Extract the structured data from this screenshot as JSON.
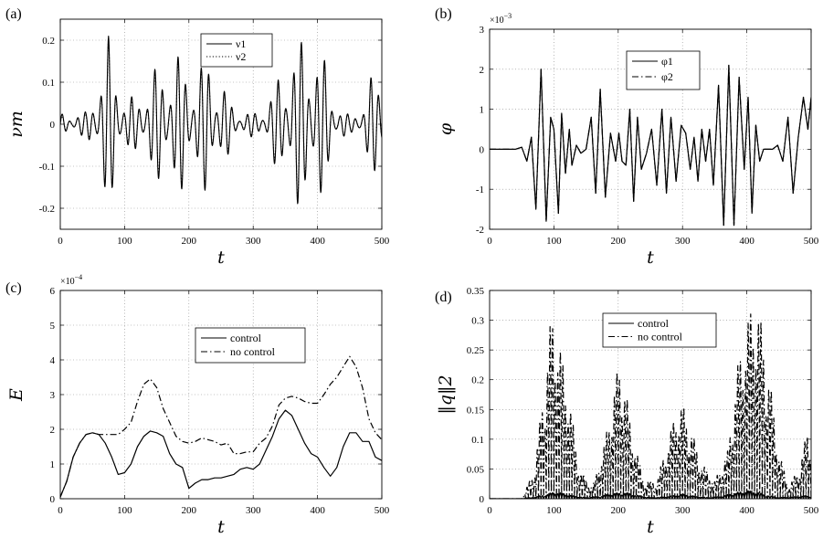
{
  "chart_data": [
    {
      "type": "line",
      "panel_label": "(a)",
      "xlabel": "t",
      "ylabel": "νm",
      "xlim": [
        0,
        500
      ],
      "ylim": [
        -0.25,
        0.25
      ],
      "xticks": [
        "0",
        "100",
        "200",
        "300",
        "400",
        "500"
      ],
      "yticks": [
        "-0.2",
        "-0.1",
        "0",
        "0.1",
        "0.2"
      ],
      "grid": true,
      "legend": "top-center",
      "series": [
        {
          "name": "ν1",
          "style": "solid",
          "form": "oscillation",
          "carrier_period": 12,
          "envelope_t": [
            0,
            40,
            60,
            75,
            85,
            100,
            120,
            150,
            170,
            185,
            200,
            215,
            230,
            250,
            270,
            290,
            305,
            320,
            340,
            360,
            380,
            395,
            410,
            430,
            450,
            470,
            485,
            500
          ],
          "envelope_v": [
            0.025,
            0.03,
            0.12,
            0.21,
            0.18,
            0.06,
            0.07,
            0.14,
            0.16,
            0.17,
            0.14,
            0.14,
            0.17,
            0.11,
            0.04,
            0.03,
            0.03,
            0.05,
            0.12,
            0.19,
            0.21,
            0.22,
            0.16,
            0.05,
            0.02,
            0.05,
            0.12,
            0.16
          ]
        },
        {
          "name": "ν2",
          "style": "dotted",
          "form": "oscillation",
          "carrier_period": 12,
          "envelope_t": [
            0,
            40,
            60,
            75,
            85,
            100,
            120,
            150,
            170,
            185,
            200,
            215,
            230,
            250,
            270,
            290,
            305,
            320,
            340,
            360,
            380,
            395,
            410,
            430,
            450,
            470,
            485,
            500
          ],
          "envelope_v": [
            0.02,
            0.025,
            0.11,
            0.2,
            0.17,
            0.05,
            0.06,
            0.13,
            0.15,
            0.16,
            0.13,
            0.13,
            0.16,
            0.1,
            0.035,
            0.025,
            0.025,
            0.045,
            0.11,
            0.18,
            0.2,
            0.21,
            0.15,
            0.045,
            0.018,
            0.045,
            0.11,
            0.15
          ]
        }
      ]
    },
    {
      "type": "line",
      "panel_label": "(b)",
      "xlabel": "t",
      "ylabel": "φ",
      "xlim": [
        0,
        500
      ],
      "ylim": [
        -2,
        3
      ],
      "scale_exponent": "×10",
      "scale_power": "−3",
      "xticks": [
        "0",
        "100",
        "200",
        "300",
        "400",
        "500"
      ],
      "yticks": [
        "-2",
        "-1",
        "0",
        "1",
        "2",
        "3"
      ],
      "grid": true,
      "legend": "top-center",
      "series": [
        {
          "name": "φ1",
          "style": "solid",
          "x": [
            0,
            40,
            50,
            58,
            65,
            72,
            80,
            88,
            95,
            100,
            107,
            112,
            118,
            124,
            128,
            135,
            142,
            150,
            158,
            165,
            172,
            180,
            188,
            196,
            201,
            206,
            212,
            218,
            224,
            230,
            236,
            244,
            252,
            260,
            268,
            275,
            282,
            290,
            298,
            305,
            312,
            318,
            324,
            330,
            336,
            342,
            348,
            356,
            364,
            372,
            380,
            388,
            396,
            402,
            408,
            414,
            420,
            426,
            432,
            440,
            448,
            456,
            464,
            472,
            480,
            488,
            495,
            500
          ],
          "y": [
            0,
            0,
            0.05,
            -0.3,
            0.3,
            -1.5,
            2.0,
            -1.8,
            0.8,
            0.5,
            -1.6,
            0.9,
            -0.6,
            0.5,
            -0.4,
            0.1,
            -0.1,
            0.0,
            0.8,
            -1.1,
            1.5,
            -1.2,
            0.4,
            -0.3,
            0.4,
            -0.3,
            -0.4,
            1.0,
            -1.3,
            0.8,
            -0.5,
            -0.1,
            0.5,
            -0.9,
            1.0,
            -1.1,
            0.8,
            -0.8,
            0.6,
            0.4,
            -0.5,
            0.3,
            -0.8,
            0.5,
            -0.3,
            0.5,
            -0.9,
            1.6,
            -1.9,
            2.1,
            -1.9,
            1.8,
            -0.5,
            1.3,
            -1.6,
            0.6,
            -0.3,
            0.0,
            0.0,
            0.0,
            0.1,
            -0.3,
            0.8,
            -1.1,
            0.3,
            1.3,
            0.5,
            1.3
          ]
        },
        {
          "name": "φ2",
          "style": "dashdot",
          "x": [
            0,
            40,
            50,
            58,
            65,
            72,
            80,
            88,
            95,
            100,
            107,
            112,
            118,
            124,
            128,
            135,
            142,
            150,
            158,
            165,
            172,
            180,
            188,
            196,
            201,
            206,
            212,
            218,
            224,
            230,
            236,
            244,
            252,
            260,
            268,
            275,
            282,
            290,
            298,
            305,
            312,
            318,
            324,
            330,
            336,
            342,
            348,
            356,
            364,
            372,
            380,
            388,
            396,
            402,
            408,
            414,
            420,
            426,
            432,
            440,
            448,
            456,
            464,
            472,
            480,
            488,
            495,
            500
          ],
          "y": [
            0,
            0,
            0.05,
            -0.3,
            0.3,
            -1.5,
            2.0,
            -1.8,
            0.8,
            0.5,
            -1.6,
            0.9,
            -0.6,
            0.5,
            -0.4,
            0.1,
            -0.1,
            0.0,
            0.8,
            -1.1,
            1.5,
            -1.2,
            0.4,
            -0.3,
            0.4,
            -0.3,
            -0.4,
            1.0,
            -1.3,
            0.8,
            -0.5,
            -0.1,
            0.5,
            -0.9,
            1.0,
            -1.1,
            0.8,
            -0.8,
            0.6,
            0.4,
            -0.5,
            0.3,
            -0.8,
            0.5,
            -0.3,
            0.5,
            -0.9,
            1.6,
            -1.9,
            2.1,
            -1.9,
            1.8,
            -0.5,
            1.3,
            -1.6,
            0.6,
            -0.3,
            0.0,
            0.0,
            0.0,
            0.1,
            -0.3,
            0.8,
            -1.1,
            0.3,
            1.3,
            0.5,
            1.3
          ]
        }
      ]
    },
    {
      "type": "line",
      "panel_label": "(c)",
      "xlabel": "t",
      "ylabel": "E",
      "xlim": [
        0,
        500
      ],
      "ylim": [
        0,
        6
      ],
      "scale_exponent": "×10",
      "scale_power": "−4",
      "xticks": [
        "0",
        "100",
        "200",
        "300",
        "400",
        "500"
      ],
      "yticks": [
        "0",
        "1",
        "2",
        "3",
        "4",
        "5",
        "6"
      ],
      "grid": true,
      "legend": "upper-center",
      "series": [
        {
          "name": "control",
          "style": "solid",
          "x": [
            0,
            10,
            20,
            30,
            40,
            50,
            60,
            70,
            80,
            90,
            100,
            110,
            120,
            130,
            140,
            150,
            160,
            170,
            180,
            190,
            200,
            210,
            220,
            230,
            240,
            250,
            260,
            270,
            280,
            290,
            300,
            310,
            320,
            330,
            340,
            350,
            360,
            370,
            380,
            390,
            400,
            410,
            420,
            430,
            440,
            450,
            460,
            470,
            480,
            490,
            500
          ],
          "y": [
            0.05,
            0.5,
            1.2,
            1.6,
            1.85,
            1.9,
            1.85,
            1.6,
            1.2,
            0.7,
            0.75,
            1.0,
            1.5,
            1.8,
            1.95,
            1.9,
            1.8,
            1.3,
            1.0,
            0.9,
            0.3,
            0.45,
            0.55,
            0.55,
            0.6,
            0.6,
            0.65,
            0.7,
            0.85,
            0.9,
            0.85,
            1.0,
            1.4,
            1.8,
            2.3,
            2.55,
            2.4,
            2.0,
            1.6,
            1.3,
            1.2,
            0.9,
            0.65,
            0.9,
            1.5,
            1.9,
            1.9,
            1.65,
            1.65,
            1.2,
            1.1
          ]
        },
        {
          "name": "no control",
          "style": "dashdot",
          "x": [
            0,
            10,
            20,
            30,
            40,
            50,
            60,
            70,
            80,
            90,
            100,
            110,
            120,
            130,
            140,
            150,
            160,
            170,
            180,
            190,
            200,
            210,
            220,
            230,
            240,
            250,
            260,
            270,
            280,
            290,
            300,
            310,
            320,
            330,
            340,
            350,
            360,
            370,
            380,
            390,
            400,
            410,
            420,
            430,
            440,
            450,
            460,
            470,
            480,
            490,
            500
          ],
          "y": [
            0.05,
            0.5,
            1.2,
            1.6,
            1.85,
            1.9,
            1.85,
            1.85,
            1.85,
            1.85,
            2.0,
            2.2,
            2.8,
            3.3,
            3.45,
            3.2,
            2.6,
            2.2,
            1.8,
            1.65,
            1.6,
            1.65,
            1.75,
            1.7,
            1.65,
            1.55,
            1.6,
            1.3,
            1.3,
            1.35,
            1.35,
            1.6,
            1.75,
            2.1,
            2.7,
            2.9,
            2.95,
            2.9,
            2.8,
            2.75,
            2.75,
            3.0,
            3.3,
            3.5,
            3.8,
            4.1,
            3.8,
            3.2,
            2.3,
            1.9,
            1.7
          ]
        }
      ]
    },
    {
      "type": "line",
      "panel_label": "(d)",
      "xlabel": "t",
      "ylabel": "‖q‖2",
      "xlim": [
        0,
        500
      ],
      "ylim": [
        0,
        0.35
      ],
      "xticks": [
        "0",
        "100",
        "200",
        "300",
        "400",
        "500"
      ],
      "yticks": [
        "0",
        "0.05",
        "0.1",
        "0.15",
        "0.2",
        "0.25",
        "0.3",
        "0.35"
      ],
      "grid": true,
      "legend": "top-center",
      "series": [
        {
          "name": "control",
          "style": "solid",
          "form": "bursts",
          "carrier_period": 8,
          "envelope_t": [
            0,
            50,
            70,
            90,
            100,
            110,
            130,
            150,
            170,
            190,
            210,
            230,
            250,
            270,
            290,
            300,
            320,
            340,
            360,
            380,
            400,
            415,
            430,
            450,
            470,
            490,
            500
          ],
          "envelope_v": [
            0,
            0,
            0.003,
            0.008,
            0.012,
            0.01,
            0.005,
            0.002,
            0.004,
            0.009,
            0.011,
            0.006,
            0.002,
            0.003,
            0.006,
            0.008,
            0.004,
            0.002,
            0.004,
            0.01,
            0.014,
            0.012,
            0.006,
            0.002,
            0.003,
            0.005,
            0.004
          ]
        },
        {
          "name": "no control",
          "style": "dashdot",
          "form": "bursts",
          "carrier_period": 8,
          "envelope_t": [
            0,
            50,
            70,
            85,
            95,
            100,
            105,
            120,
            140,
            160,
            180,
            195,
            205,
            220,
            240,
            260,
            275,
            290,
            300,
            310,
            330,
            350,
            370,
            385,
            400,
            410,
            415,
            430,
            450,
            465,
            480,
            495,
            500
          ],
          "envelope_v": [
            0,
            0,
            0.05,
            0.2,
            0.3,
            0.32,
            0.28,
            0.2,
            0.05,
            0.02,
            0.1,
            0.2,
            0.24,
            0.12,
            0.03,
            0.03,
            0.09,
            0.15,
            0.16,
            0.13,
            0.06,
            0.03,
            0.08,
            0.22,
            0.3,
            0.33,
            0.34,
            0.25,
            0.08,
            0.02,
            0.05,
            0.12,
            0.1
          ]
        }
      ]
    }
  ]
}
